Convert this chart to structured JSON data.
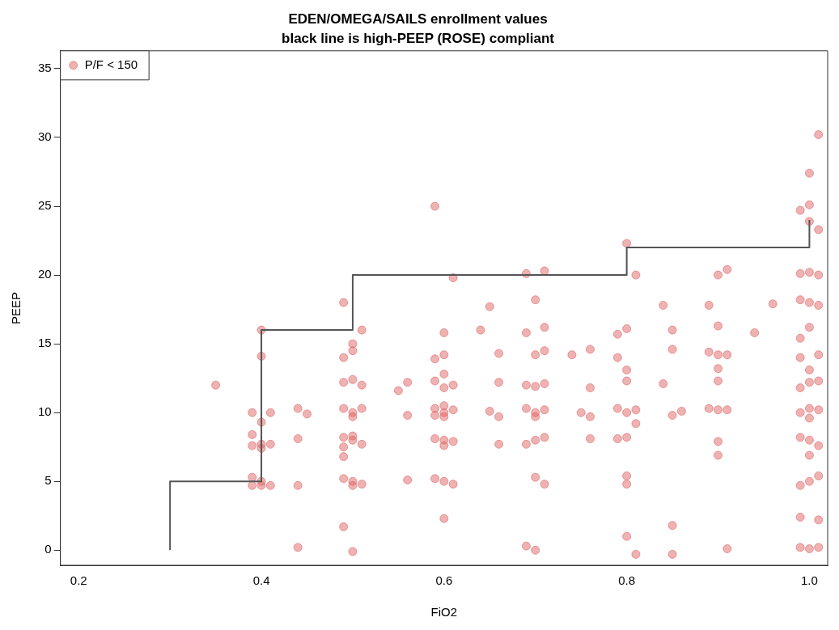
{
  "chart_data": {
    "type": "scatter",
    "title": "EDEN/OMEGA/SAILS enrollment values",
    "subtitle": "black line is high-PEEP (ROSE) compliant",
    "xlabel": "FiO2",
    "ylabel": "PEEP",
    "xlim": [
      0.18,
      1.02
    ],
    "ylim": [
      -1.1,
      36.3
    ],
    "xticks": [
      0.2,
      0.4,
      0.6,
      0.8,
      {
        "value": 1.0,
        "label": "1.0"
      }
    ],
    "yticks": [
      0,
      5,
      10,
      15,
      20,
      25,
      30,
      35
    ],
    "grid": false,
    "legend": "top left",
    "marker": "circle",
    "series": [
      {
        "name": "P/F < 150",
        "color": "#e06666",
        "x": [
          0.35,
          0.39,
          0.39,
          0.4,
          0.39,
          0.4,
          0.4,
          0.39,
          0.39,
          0.4,
          0.4,
          0.41,
          0.41,
          0.4,
          0.41,
          0.4,
          0.44,
          0.44,
          0.44,
          0.45,
          0.44,
          0.49,
          0.49,
          0.5,
          0.5,
          0.51,
          0.49,
          0.5,
          0.51,
          0.49,
          0.5,
          0.51,
          0.5,
          0.49,
          0.5,
          0.51,
          0.49,
          0.5,
          0.49,
          0.49,
          0.5,
          0.5,
          0.51,
          0.49,
          0.5,
          0.55,
          0.56,
          0.56,
          0.56,
          0.59,
          0.59,
          0.6,
          0.6,
          0.61,
          0.59,
          0.6,
          0.59,
          0.6,
          0.61,
          0.6,
          0.59,
          0.6,
          0.59,
          0.6,
          0.61,
          0.6,
          0.59,
          0.6,
          0.61,
          0.6,
          0.61,
          0.6,
          0.64,
          0.65,
          0.66,
          0.66,
          0.65,
          0.66,
          0.66,
          0.69,
          0.7,
          0.71,
          0.71,
          0.69,
          0.7,
          0.71,
          0.69,
          0.7,
          0.71,
          0.69,
          0.7,
          0.71,
          0.7,
          0.69,
          0.7,
          0.71,
          0.7,
          0.71,
          0.69,
          0.7,
          0.74,
          0.75,
          0.76,
          0.76,
          0.76,
          0.76,
          0.79,
          0.8,
          0.79,
          0.8,
          0.8,
          0.79,
          0.8,
          0.81,
          0.81,
          0.79,
          0.8,
          0.8,
          0.8,
          0.8,
          0.81,
          0.8,
          0.81,
          0.84,
          0.85,
          0.85,
          0.84,
          0.85,
          0.86,
          0.85,
          0.85,
          0.89,
          0.9,
          0.91,
          0.9,
          0.89,
          0.9,
          0.91,
          0.9,
          0.89,
          0.9,
          0.91,
          0.9,
          0.9,
          0.91,
          0.9,
          0.94,
          0.96,
          0.99,
          1.0,
          1.0,
          1.0,
          1.01,
          1.01,
          0.99,
          1.0,
          1.01,
          0.99,
          1.0,
          1.01,
          1.0,
          0.99,
          1.01,
          0.99,
          1.0,
          1.0,
          1.01,
          0.99,
          1.0,
          0.99,
          1.01,
          1.0,
          0.99,
          1.0,
          1.01,
          1.0,
          0.99,
          1.01,
          0.99,
          1.01,
          0.99,
          1.0,
          1.01,
          1.0
        ],
        "values": [
          12,
          10,
          8.4,
          7.7,
          7.6,
          14.1,
          16,
          5.3,
          4.7,
          5,
          4.7,
          4.7,
          10,
          9.3,
          7.7,
          7.4,
          10.3,
          8.1,
          4.7,
          9.9,
          0.2,
          18,
          14,
          15,
          14.5,
          16,
          12.2,
          12.4,
          12,
          10.3,
          10,
          10.3,
          9.7,
          8.2,
          8,
          7.7,
          7.5,
          8.3,
          6.8,
          5.2,
          5,
          4.7,
          4.8,
          1.7,
          -0.1,
          11.6,
          12.2,
          9.8,
          5.1,
          25,
          13.9,
          15.8,
          14.2,
          12,
          12.3,
          11.8,
          10.3,
          10,
          10.2,
          9.7,
          9.8,
          10.5,
          8.1,
          8,
          7.9,
          7.6,
          5.2,
          5,
          4.8,
          2.3,
          19.8,
          12.8,
          16,
          17.7,
          14.3,
          12.2,
          10.1,
          9.7,
          7.7,
          20.1,
          18.2,
          20.3,
          16.2,
          15.8,
          14.2,
          14.5,
          12,
          11.9,
          12.1,
          10.3,
          10,
          10.2,
          9.7,
          7.7,
          8,
          8.2,
          5.3,
          4.8,
          0.3,
          0,
          14.2,
          10,
          9.7,
          11.8,
          14.6,
          8.1,
          15.7,
          16.1,
          14,
          13.1,
          12.3,
          10.3,
          10,
          10.2,
          9.2,
          8.1,
          8.2,
          5.4,
          4.8,
          1,
          -0.3,
          22.3,
          20,
          17.8,
          16,
          14.6,
          12.1,
          9.8,
          10.1,
          1.8,
          -0.3,
          17.8,
          20,
          20.4,
          16.3,
          14.4,
          14.2,
          14.2,
          12.3,
          10.3,
          10.2,
          10.2,
          7.9,
          6.9,
          0.1,
          13.2,
          15.8,
          17.9,
          24.7,
          23.9,
          25.1,
          27.4,
          30.2,
          23.3,
          20.1,
          20.2,
          20,
          18.2,
          18,
          17.8,
          16.2,
          15.4,
          14.2,
          14,
          13.1,
          12.2,
          12.3,
          11.8,
          10.3,
          10,
          10.2,
          9.6,
          8.2,
          8,
          7.6,
          5,
          4.7,
          5.4,
          2.4,
          2.2,
          0.2,
          0.1,
          0.2,
          6.9
        ]
      },
      {
        "type": "line",
        "color": "#555555",
        "marker": "none",
        "x": [
          0.3,
          0.3,
          0.4,
          0.4,
          0.5,
          0.5,
          0.8,
          0.8,
          1.0,
          1.0
        ],
        "values": [
          0,
          5,
          5,
          16,
          16,
          20,
          20,
          22,
          22,
          24
        ]
      }
    ]
  }
}
